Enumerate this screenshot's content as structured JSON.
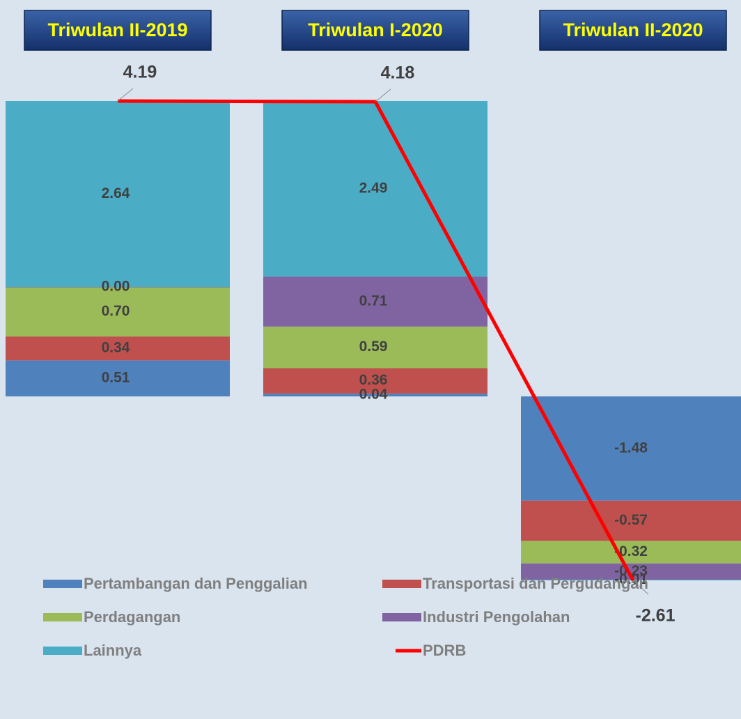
{
  "chart_data": {
    "type": "bar",
    "stacked": true,
    "categories": [
      "Triwulan II-2019",
      "Triwulan I-2020",
      "Triwulan II-2020"
    ],
    "series": [
      {
        "name": "Pertambangan dan Penggalian",
        "color": "#4f81bd",
        "values": [
          0.51,
          0.04,
          -1.48
        ],
        "value_labels": [
          "0.51",
          "0.04",
          "-1.48"
        ]
      },
      {
        "name": "Transportasi dan Pergudangan",
        "color": "#c0504d",
        "values": [
          0.34,
          0.36,
          -0.57
        ],
        "value_labels": [
          "0.34",
          "0.36",
          "-0.57"
        ]
      },
      {
        "name": "Perdagangan",
        "color": "#9bbb59",
        "values": [
          0.7,
          0.59,
          -0.32
        ],
        "value_labels": [
          "0.70",
          "0.59",
          "-0.32"
        ]
      },
      {
        "name": "Industri Pengolahan",
        "color": "#8064a2",
        "values": [
          0.0,
          0.71,
          -0.23
        ],
        "value_labels": [
          "0.00",
          "0.71",
          "-0.23"
        ]
      },
      {
        "name": "Lainnya",
        "color": "#4bacc6",
        "values": [
          2.64,
          2.49,
          -0.01
        ],
        "value_labels": [
          "2.64",
          "2.49",
          "-0.01"
        ]
      },
      {
        "name": "PDRB",
        "type": "line",
        "color": "#ff0000",
        "values": [
          4.19,
          4.18,
          -2.61
        ],
        "value_labels": [
          "4.19",
          "4.18",
          "-2.61"
        ]
      }
    ]
  }
}
